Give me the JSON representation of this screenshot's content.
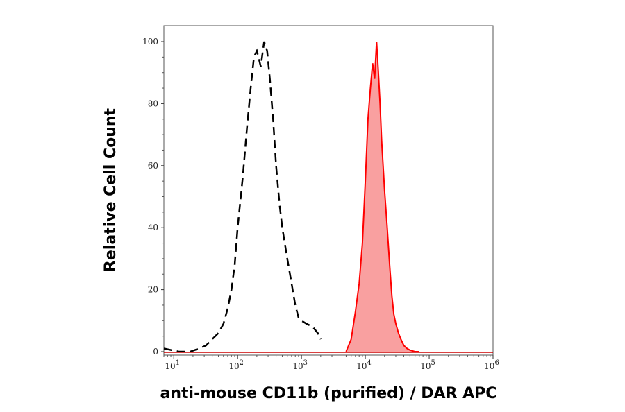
{
  "chart_data": {
    "type": "area",
    "title": "",
    "xlabel": "anti-mouse CD11b (purified) / DAR APC",
    "ylabel": "Relative Cell Count",
    "x_scale": "log",
    "xlim": [
      7,
      1000000
    ],
    "ylim": [
      0,
      100
    ],
    "x_ticks": [
      {
        "value": 10,
        "base": "10",
        "exp": "1"
      },
      {
        "value": 100,
        "base": "10",
        "exp": "2"
      },
      {
        "value": 1000,
        "base": "10",
        "exp": "3"
      },
      {
        "value": 10000,
        "base": "10",
        "exp": "4"
      },
      {
        "value": 100000,
        "base": "10",
        "exp": "5"
      },
      {
        "value": 1000000,
        "base": "10",
        "exp": "6"
      }
    ],
    "y_ticks": [
      0,
      20,
      40,
      60,
      80,
      100
    ],
    "y_tick_labels": [
      "0",
      "20",
      "40",
      "60",
      "80",
      "100"
    ],
    "grid": false,
    "series": [
      {
        "style": "dashed-line",
        "color": "#000000",
        "x": [
          7,
          12,
          18,
          25,
          32,
          40,
          50,
          60,
          70,
          80,
          90,
          100,
          120,
          140,
          160,
          180,
          200,
          230,
          260,
          290,
          320,
          360,
          400,
          450,
          500,
          600,
          700,
          800,
          900,
          1000,
          1200,
          1500,
          1800,
          2000
        ],
        "y": [
          1,
          0,
          0,
          1,
          2,
          4,
          6,
          9,
          14,
          20,
          28,
          40,
          56,
          72,
          85,
          95,
          97,
          92,
          100,
          97,
          88,
          75,
          60,
          48,
          40,
          30,
          22,
          15,
          11,
          10,
          9,
          8,
          6,
          4
        ]
      },
      {
        "style": "filled-area",
        "color": "#ff0000",
        "fill": "#f9a0a0",
        "x": [
          5000,
          6000,
          7000,
          8000,
          9000,
          10000,
          11000,
          12000,
          13000,
          14000,
          15000,
          16000,
          17000,
          18000,
          19000,
          20000,
          22000,
          24000,
          26000,
          28000,
          30000,
          33000,
          36000,
          40000,
          45000,
          50000,
          60000,
          70000
        ],
        "y": [
          0,
          4,
          13,
          22,
          35,
          55,
          75,
          85,
          93,
          88,
          100,
          90,
          80,
          68,
          60,
          52,
          40,
          28,
          18,
          12,
          9,
          6,
          4,
          2,
          1,
          0.5,
          0,
          0
        ]
      }
    ]
  }
}
